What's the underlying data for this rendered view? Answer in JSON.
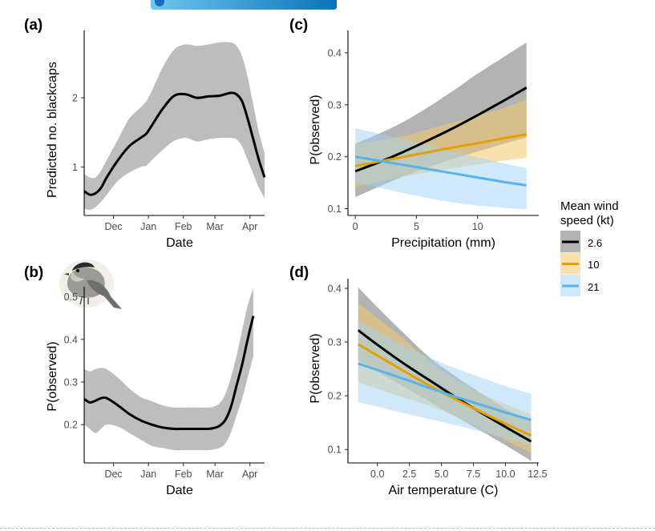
{
  "colors": {
    "band_grey": "#bdbdbd",
    "line_black": "#000000",
    "wind_2_6": "#000000",
    "wind_10": "#e69f00",
    "wind_21": "#56b4e9",
    "wind_2_6_band": "#808080",
    "wind_10_band": "#f3c96c",
    "wind_21_band": "#9fd3f5"
  },
  "icons": {
    "bird": "blackcap-bird-illustration",
    "header_strip": "publisher-banner-strip"
  },
  "chart_data": [
    {
      "id": "a",
      "panel_label": "(a)",
      "type": "line",
      "xlabel": "Date",
      "ylabel": "Predicted no. blackcaps",
      "ylim": [
        0.3,
        2.95
      ],
      "yticks": [
        1,
        2
      ],
      "xlim": [
        0,
        160
      ],
      "xticks": [
        {
          "x": 26,
          "label": "Dec"
        },
        {
          "x": 57,
          "label": "Jan"
        },
        {
          "x": 88,
          "label": "Feb"
        },
        {
          "x": 116,
          "label": "Mar"
        },
        {
          "x": 147,
          "label": "Apr"
        }
      ],
      "grid": false,
      "series": [
        {
          "x": [
            0,
            5,
            10,
            15,
            20,
            30,
            40,
            50,
            55,
            60,
            70,
            80,
            90,
            100,
            110,
            120,
            130,
            135,
            140,
            145,
            150,
            155,
            160
          ],
          "y": [
            0.65,
            0.6,
            0.62,
            0.7,
            0.85,
            1.1,
            1.3,
            1.42,
            1.48,
            1.6,
            1.85,
            2.03,
            2.05,
            2.0,
            2.02,
            2.03,
            2.07,
            2.05,
            1.95,
            1.7,
            1.4,
            1.1,
            0.85
          ],
          "lower": [
            0.4,
            0.38,
            0.42,
            0.5,
            0.6,
            0.8,
            0.92,
            1.0,
            1.02,
            1.1,
            1.25,
            1.38,
            1.42,
            1.37,
            1.4,
            1.42,
            1.42,
            1.4,
            1.3,
            1.1,
            0.9,
            0.7,
            0.55
          ],
          "upper": [
            0.9,
            0.85,
            0.85,
            0.95,
            1.1,
            1.4,
            1.7,
            1.86,
            1.95,
            2.1,
            2.45,
            2.7,
            2.77,
            2.75,
            2.77,
            2.8,
            2.8,
            2.75,
            2.6,
            2.3,
            1.9,
            1.5,
            1.2
          ]
        }
      ]
    },
    {
      "id": "b",
      "panel_label": "(b)",
      "type": "line",
      "xlabel": "Date",
      "ylabel": "P(observed)",
      "ylim": [
        0.11,
        0.52
      ],
      "yticks": [
        0.2,
        0.3,
        0.4,
        0.5
      ],
      "xlim": [
        0,
        160
      ],
      "xticks": [
        {
          "x": 26,
          "label": "Dec"
        },
        {
          "x": 57,
          "label": "Jan"
        },
        {
          "x": 88,
          "label": "Feb"
        },
        {
          "x": 116,
          "label": "Mar"
        },
        {
          "x": 147,
          "label": "Apr"
        }
      ],
      "grid": false,
      "series": [
        {
          "x": [
            0,
            5,
            10,
            15,
            20,
            30,
            40,
            50,
            60,
            70,
            80,
            90,
            100,
            110,
            115,
            120,
            125,
            130,
            135,
            140,
            145,
            150
          ],
          "y": [
            0.26,
            0.252,
            0.256,
            0.262,
            0.262,
            0.245,
            0.225,
            0.21,
            0.2,
            0.193,
            0.19,
            0.19,
            0.19,
            0.19,
            0.192,
            0.197,
            0.21,
            0.24,
            0.29,
            0.34,
            0.4,
            0.455
          ],
          "lower": [
            0.2,
            0.19,
            0.18,
            0.19,
            0.2,
            0.195,
            0.18,
            0.165,
            0.15,
            0.145,
            0.14,
            0.14,
            0.14,
            0.14,
            0.142,
            0.145,
            0.155,
            0.18,
            0.22,
            0.26,
            0.31,
            0.36
          ],
          "upper": [
            0.33,
            0.325,
            0.33,
            0.333,
            0.33,
            0.31,
            0.285,
            0.265,
            0.255,
            0.245,
            0.24,
            0.24,
            0.24,
            0.24,
            0.242,
            0.25,
            0.27,
            0.31,
            0.36,
            0.42,
            0.48,
            0.52
          ]
        }
      ]
    },
    {
      "id": "c",
      "panel_label": "(c)",
      "type": "line",
      "xlabel": "Precipitation (mm)",
      "ylabel": "P(observed)",
      "xlim": [
        -0.6,
        15
      ],
      "ylim": [
        0.087,
        0.44
      ],
      "xticks": [
        {
          "x": 0,
          "label": "0"
        },
        {
          "x": 5,
          "label": "5"
        },
        {
          "x": 10,
          "label": "10"
        }
      ],
      "yticks": [
        0.1,
        0.2,
        0.3,
        0.4
      ],
      "grid": false,
      "series": [
        {
          "name": "2.6",
          "color_key": "wind_2_6",
          "x": [
            0,
            2,
            4,
            6,
            8,
            10,
            12,
            14
          ],
          "y": [
            0.172,
            0.19,
            0.21,
            0.232,
            0.255,
            0.28,
            0.306,
            0.333
          ],
          "lower": [
            0.122,
            0.143,
            0.163,
            0.18,
            0.196,
            0.21,
            0.224,
            0.237
          ],
          "upper": [
            0.225,
            0.245,
            0.268,
            0.296,
            0.327,
            0.36,
            0.39,
            0.42
          ]
        },
        {
          "name": "10",
          "color_key": "wind_10",
          "x": [
            0,
            2,
            4,
            6,
            8,
            10,
            12,
            14
          ],
          "y": [
            0.182,
            0.191,
            0.2,
            0.209,
            0.218,
            0.226,
            0.235,
            0.243
          ],
          "lower": [
            0.142,
            0.152,
            0.162,
            0.17,
            0.178,
            0.185,
            0.192,
            0.198
          ],
          "upper": [
            0.225,
            0.232,
            0.24,
            0.253,
            0.266,
            0.279,
            0.293,
            0.31
          ]
        },
        {
          "name": "21",
          "color_key": "wind_21",
          "x": [
            0,
            2,
            4,
            6,
            8,
            10,
            12,
            14
          ],
          "y": [
            0.2,
            0.192,
            0.184,
            0.176,
            0.168,
            0.16,
            0.152,
            0.145
          ],
          "lower": [
            0.15,
            0.14,
            0.13,
            0.12,
            0.112,
            0.106,
            0.102,
            0.099
          ],
          "upper": [
            0.255,
            0.244,
            0.233,
            0.222,
            0.21,
            0.199,
            0.188,
            0.178
          ]
        }
      ]
    },
    {
      "id": "d",
      "panel_label": "(d)",
      "type": "line",
      "xlabel": "Air temperature (C)",
      "ylabel": "P(observed)",
      "xlim": [
        -2.3,
        12.6
      ],
      "ylim": [
        0.075,
        0.415
      ],
      "xticks": [
        {
          "x": 0,
          "label": "0.0"
        },
        {
          "x": 2.5,
          "label": "2.5"
        },
        {
          "x": 5,
          "label": "5.0"
        },
        {
          "x": 7.5,
          "label": "7.5"
        },
        {
          "x": 10,
          "label": "10.0"
        },
        {
          "x": 12.5,
          "label": "12.5"
        }
      ],
      "yticks": [
        0.1,
        0.2,
        0.3,
        0.4
      ],
      "grid": false,
      "series": [
        {
          "name": "2.6",
          "color_key": "wind_2_6",
          "x": [
            -1.5,
            0,
            2,
            4,
            6,
            8,
            10,
            12
          ],
          "y": [
            0.322,
            0.295,
            0.261,
            0.23,
            0.199,
            0.17,
            0.142,
            0.115
          ],
          "lower": [
            0.266,
            0.245,
            0.218,
            0.19,
            0.163,
            0.136,
            0.108,
            0.079
          ],
          "upper": [
            0.402,
            0.365,
            0.318,
            0.273,
            0.238,
            0.206,
            0.176,
            0.152
          ]
        },
        {
          "name": "10",
          "color_key": "wind_10",
          "x": [
            -1.5,
            0,
            2,
            4,
            6,
            8,
            10,
            12
          ],
          "y": [
            0.296,
            0.275,
            0.247,
            0.22,
            0.195,
            0.171,
            0.148,
            0.126
          ],
          "lower": [
            0.225,
            0.213,
            0.197,
            0.182,
            0.162,
            0.14,
            0.117,
            0.093
          ],
          "upper": [
            0.372,
            0.345,
            0.307,
            0.265,
            0.232,
            0.206,
            0.184,
            0.165
          ]
        },
        {
          "name": "21",
          "color_key": "wind_21",
          "x": [
            -1.5,
            0,
            2,
            4,
            6,
            8,
            10,
            12
          ],
          "y": [
            0.26,
            0.248,
            0.232,
            0.215,
            0.199,
            0.184,
            0.169,
            0.155
          ],
          "lower": [
            0.188,
            0.18,
            0.168,
            0.157,
            0.146,
            0.134,
            0.121,
            0.108
          ],
          "upper": [
            0.34,
            0.32,
            0.295,
            0.272,
            0.252,
            0.235,
            0.218,
            0.204
          ]
        }
      ]
    }
  ],
  "legend": {
    "title_line1": "Mean wind",
    "title_line2": "speed (kt)",
    "placement": "right",
    "items": [
      {
        "label": "2.6",
        "color_key": "wind_2_6",
        "band_key": "wind_2_6_band"
      },
      {
        "label": "10",
        "color_key": "wind_10",
        "band_key": "wind_10_band"
      },
      {
        "label": "21",
        "color_key": "wind_21",
        "band_key": "wind_21_band"
      }
    ]
  }
}
